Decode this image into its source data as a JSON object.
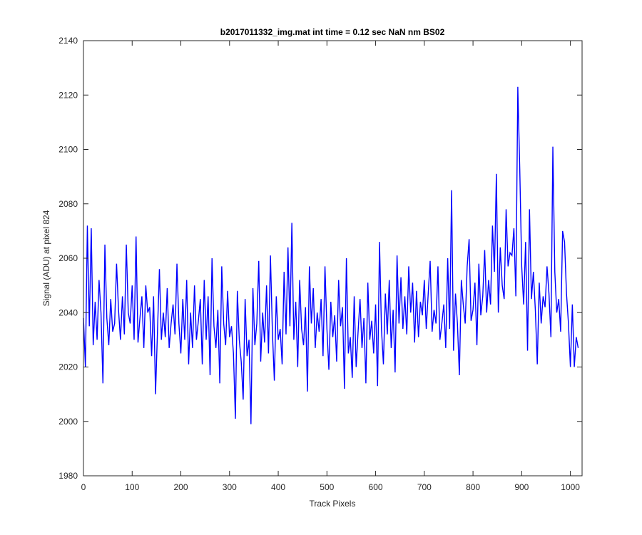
{
  "chart_data": {
    "type": "line",
    "title": "b2017011332_img.mat int time = 0.12 sec  NaN nm BS02",
    "xlabel": "Track Pixels",
    "ylabel": "Signal (ADU) at pixel 824",
    "xlim": [
      0,
      1024
    ],
    "ylim": [
      1980,
      2140
    ],
    "xticks": [
      0,
      100,
      200,
      300,
      400,
      500,
      600,
      700,
      800,
      900,
      1000
    ],
    "yticks": [
      1980,
      2000,
      2020,
      2040,
      2060,
      2080,
      2100,
      2120,
      2140
    ],
    "grid": false,
    "legend": "none",
    "line_color": "#0000ff",
    "series": [
      {
        "color": "#0000ff",
        "x_start": 0,
        "x_step": 4,
        "values": [
          2038,
          2020,
          2072,
          2035,
          2071,
          2028,
          2044,
          2030,
          2052,
          2040,
          2014,
          2065,
          2038,
          2028,
          2045,
          2033,
          2036,
          2058,
          2041,
          2030,
          2046,
          2032,
          2065,
          2040,
          2036,
          2050,
          2030,
          2068,
          2029,
          2038,
          2046,
          2027,
          2050,
          2040,
          2042,
          2024,
          2046,
          2010,
          2033,
          2056,
          2030,
          2040,
          2031,
          2049,
          2027,
          2036,
          2043,
          2032,
          2058,
          2036,
          2025,
          2045,
          2030,
          2052,
          2021,
          2040,
          2027,
          2050,
          2030,
          2037,
          2045,
          2021,
          2052,
          2030,
          2046,
          2017,
          2060,
          2035,
          2027,
          2041,
          2014,
          2057,
          2036,
          2028,
          2048,
          2031,
          2035,
          2025,
          2001,
          2048,
          2030,
          2022,
          2008,
          2045,
          2024,
          2030,
          1999,
          2049,
          2028,
          2036,
          2059,
          2022,
          2040,
          2029,
          2050,
          2025,
          2061,
          2033,
          2015,
          2046,
          2030,
          2034,
          2021,
          2055,
          2032,
          2064,
          2035,
          2073,
          2030,
          2044,
          2020,
          2052,
          2034,
          2028,
          2042,
          2011,
          2057,
          2036,
          2049,
          2027,
          2040,
          2033,
          2045,
          2024,
          2057,
          2034,
          2019,
          2044,
          2031,
          2039,
          2022,
          2052,
          2035,
          2042,
          2012,
          2060,
          2025,
          2031,
          2016,
          2046,
          2020,
          2033,
          2045,
          2027,
          2038,
          2014,
          2051,
          2030,
          2037,
          2025,
          2043,
          2013,
          2066,
          2034,
          2021,
          2047,
          2032,
          2052,
          2027,
          2041,
          2018,
          2061,
          2036,
          2053,
          2034,
          2046,
          2032,
          2057,
          2040,
          2051,
          2029,
          2048,
          2031,
          2044,
          2039,
          2052,
          2034,
          2047,
          2059,
          2033,
          2041,
          2036,
          2057,
          2030,
          2036,
          2043,
          2027,
          2060,
          2034,
          2085,
          2026,
          2047,
          2036,
          2017,
          2052,
          2043,
          2036,
          2057,
          2067,
          2037,
          2041,
          2051,
          2028,
          2058,
          2039,
          2046,
          2063,
          2040,
          2052,
          2043,
          2072,
          2055,
          2091,
          2040,
          2064,
          2050,
          2045,
          2078,
          2057,
          2062,
          2061,
          2071,
          2046,
          2123,
          2093,
          2057,
          2043,
          2066,
          2026,
          2078,
          2045,
          2055,
          2041,
          2021,
          2051,
          2036,
          2046,
          2042,
          2057,
          2047,
          2031,
          2101,
          2055,
          2040,
          2045,
          2033,
          2070,
          2066,
          2047,
          2036,
          2020,
          2043,
          2020,
          2031,
          2027
        ]
      }
    ]
  }
}
